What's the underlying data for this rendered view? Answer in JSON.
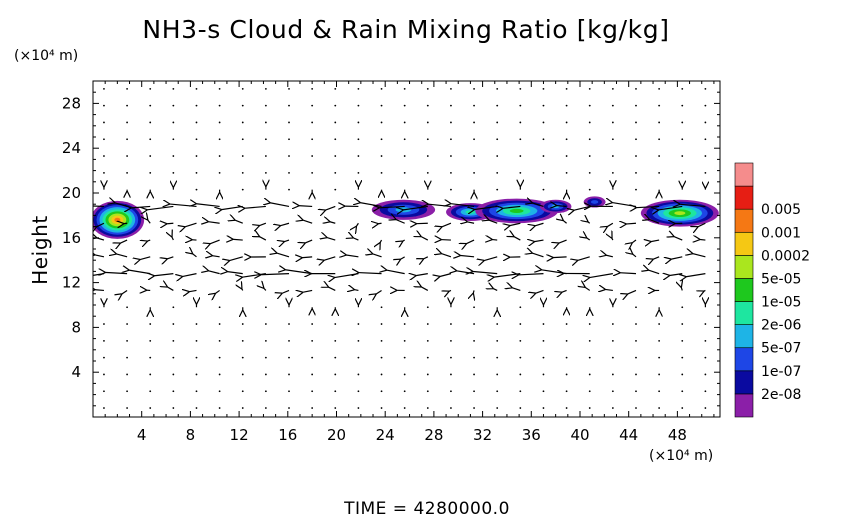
{
  "title": "NH3-s Cloud & Rain Mixing Ratio [kg/kg]",
  "time_label": "TIME  =  4280000.0",
  "chart_data": {
    "type": "heatmap",
    "title": "NH3-s Cloud & Rain Mixing Ratio [kg/kg]",
    "ylabel": "Height",
    "xunit": "(×10⁴ m)",
    "yunit": "(×10⁴ m)",
    "xlim": [
      0,
      51.5
    ],
    "ylim": [
      0,
      30
    ],
    "xticks": [
      4,
      8,
      12,
      16,
      20,
      24,
      28,
      32,
      36,
      40,
      44,
      48
    ],
    "yticks": [
      4,
      8,
      12,
      16,
      20,
      24,
      28
    ],
    "grid": false,
    "colorbar": {
      "levels": [
        "2e-08",
        "1e-07",
        "5e-07",
        "2e-06",
        "1e-05",
        "5e-05",
        "0.0002",
        "0.001",
        "0.005"
      ],
      "colors": [
        "#8b1fa8",
        "#0a0aa0",
        "#1e46e6",
        "#1eb4e6",
        "#1ee6a0",
        "#1ec81e",
        "#aae61e",
        "#f5c814",
        "#f57814",
        "#e61e14",
        "#f58c8c"
      ]
    },
    "cloud_patches": [
      {
        "x": 2.0,
        "y": 17.6,
        "rx": 2.2,
        "ry": 1.7,
        "peak": 8
      },
      {
        "x": 25.5,
        "y": 18.5,
        "rx": 2.6,
        "ry": 0.9,
        "peak": 3
      },
      {
        "x": 31.0,
        "y": 18.3,
        "rx": 2.0,
        "ry": 0.8,
        "peak": 4
      },
      {
        "x": 34.8,
        "y": 18.4,
        "rx": 3.4,
        "ry": 1.1,
        "peak": 5
      },
      {
        "x": 38.0,
        "y": 18.8,
        "rx": 1.3,
        "ry": 0.6,
        "peak": 3
      },
      {
        "x": 41.2,
        "y": 19.2,
        "rx": 0.9,
        "ry": 0.5,
        "peak": 2
      },
      {
        "x": 48.2,
        "y": 18.2,
        "rx": 3.2,
        "ry": 1.2,
        "peak": 6
      }
    ],
    "wind_vectors": {
      "x_spacing": 1.9,
      "y_spacing": 1.5,
      "description_rows": [
        {
          "y": 19.0,
          "u": -3.0
        },
        {
          "y": 17.6,
          "u": -1.2
        },
        {
          "y": 16.2,
          "u": -1.0
        },
        {
          "y": 14.8,
          "u": -0.6
        },
        {
          "y": 13.6,
          "u": -1.6
        },
        {
          "y": 12.2,
          "u": -3.2
        },
        {
          "y": 10.8,
          "u": -0.9
        }
      ]
    }
  }
}
